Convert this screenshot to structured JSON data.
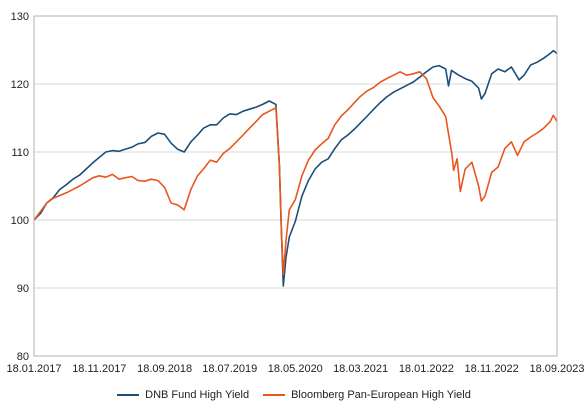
{
  "chart_data": {
    "type": "line",
    "title": "",
    "xlabel": "",
    "ylabel": "",
    "ylim": [
      80,
      130
    ],
    "yticks": [
      80,
      90,
      100,
      110,
      120,
      130
    ],
    "xlim": [
      "2017-01-18",
      "2023-09-18"
    ],
    "xtick_labels": [
      "18.01.2017",
      "18.11.2017",
      "18.09.2018",
      "18.07.2019",
      "18.05.2020",
      "18.03.2021",
      "18.01.2022",
      "18.11.2022",
      "18.09.2023"
    ],
    "xtick_dates": [
      "2017-01-18",
      "2017-11-18",
      "2018-09-18",
      "2019-07-18",
      "2020-05-18",
      "2021-03-18",
      "2022-01-18",
      "2022-11-18",
      "2023-09-18"
    ],
    "grid": true,
    "legend_position": "bottom",
    "series": [
      {
        "name": "DNB Fund High Yield",
        "color": "#1f4e79",
        "points": [
          [
            "2017-01-18",
            100.0
          ],
          [
            "2017-02-18",
            101.0
          ],
          [
            "2017-03-18",
            102.5
          ],
          [
            "2017-04-18",
            103.3
          ],
          [
            "2017-05-18",
            104.5
          ],
          [
            "2017-06-18",
            105.2
          ],
          [
            "2017-07-18",
            106.0
          ],
          [
            "2017-08-18",
            106.6
          ],
          [
            "2017-09-18",
            107.5
          ],
          [
            "2017-10-18",
            108.4
          ],
          [
            "2017-11-18",
            109.2
          ],
          [
            "2017-12-18",
            110.0
          ],
          [
            "2018-01-18",
            110.2
          ],
          [
            "2018-02-18",
            110.1
          ],
          [
            "2018-03-18",
            110.4
          ],
          [
            "2018-04-18",
            110.7
          ],
          [
            "2018-05-18",
            111.2
          ],
          [
            "2018-06-18",
            111.4
          ],
          [
            "2018-07-18",
            112.3
          ],
          [
            "2018-08-18",
            112.8
          ],
          [
            "2018-09-18",
            112.6
          ],
          [
            "2018-10-18",
            111.3
          ],
          [
            "2018-11-18",
            110.4
          ],
          [
            "2018-12-18",
            110.0
          ],
          [
            "2019-01-18",
            111.5
          ],
          [
            "2019-02-18",
            112.5
          ],
          [
            "2019-03-18",
            113.5
          ],
          [
            "2019-04-18",
            114.0
          ],
          [
            "2019-05-18",
            114.0
          ],
          [
            "2019-06-18",
            115.0
          ],
          [
            "2019-07-18",
            115.6
          ],
          [
            "2019-08-18",
            115.5
          ],
          [
            "2019-09-18",
            116.0
          ],
          [
            "2019-10-18",
            116.3
          ],
          [
            "2019-11-18",
            116.6
          ],
          [
            "2019-12-18",
            117.0
          ],
          [
            "2020-01-18",
            117.5
          ],
          [
            "2020-02-18",
            117.0
          ],
          [
            "2020-03-05",
            108.0
          ],
          [
            "2020-03-15",
            98.0
          ],
          [
            "2020-03-23",
            90.3
          ],
          [
            "2020-04-05",
            94.5
          ],
          [
            "2020-04-20",
            97.5
          ],
          [
            "2020-05-18",
            99.8
          ],
          [
            "2020-06-18",
            103.5
          ],
          [
            "2020-07-18",
            105.8
          ],
          [
            "2020-08-18",
            107.5
          ],
          [
            "2020-09-18",
            108.5
          ],
          [
            "2020-10-18",
            109.0
          ],
          [
            "2020-11-18",
            110.5
          ],
          [
            "2020-12-18",
            111.8
          ],
          [
            "2021-01-18",
            112.5
          ],
          [
            "2021-02-18",
            113.4
          ],
          [
            "2021-03-18",
            114.3
          ],
          [
            "2021-04-18",
            115.3
          ],
          [
            "2021-05-18",
            116.3
          ],
          [
            "2021-06-18",
            117.3
          ],
          [
            "2021-07-18",
            118.1
          ],
          [
            "2021-08-18",
            118.8
          ],
          [
            "2021-09-18",
            119.3
          ],
          [
            "2021-10-18",
            119.8
          ],
          [
            "2021-11-18",
            120.3
          ],
          [
            "2021-12-18",
            121.0
          ],
          [
            "2022-01-18",
            121.8
          ],
          [
            "2022-02-18",
            122.5
          ],
          [
            "2022-03-18",
            122.7
          ],
          [
            "2022-04-18",
            122.2
          ],
          [
            "2022-05-01",
            119.7
          ],
          [
            "2022-05-15",
            122.0
          ],
          [
            "2022-06-18",
            121.3
          ],
          [
            "2022-07-18",
            120.8
          ],
          [
            "2022-08-18",
            120.4
          ],
          [
            "2022-09-18",
            119.4
          ],
          [
            "2022-10-01",
            117.8
          ],
          [
            "2022-10-18",
            118.6
          ],
          [
            "2022-11-18",
            121.5
          ],
          [
            "2022-12-18",
            122.2
          ],
          [
            "2023-01-18",
            121.8
          ],
          [
            "2023-02-18",
            122.5
          ],
          [
            "2023-03-18",
            121.0
          ],
          [
            "2023-03-25",
            120.6
          ],
          [
            "2023-04-18",
            121.3
          ],
          [
            "2023-05-18",
            122.8
          ],
          [
            "2023-06-18",
            123.2
          ],
          [
            "2023-07-18",
            123.8
          ],
          [
            "2023-08-18",
            124.5
          ],
          [
            "2023-09-01",
            124.9
          ],
          [
            "2023-09-18",
            124.5
          ]
        ]
      },
      {
        "name": "Bloomberg Pan-European High Yield",
        "color": "#e8571f",
        "points": [
          [
            "2017-01-18",
            100.0
          ],
          [
            "2017-02-18",
            101.3
          ],
          [
            "2017-03-18",
            102.5
          ],
          [
            "2017-04-18",
            103.2
          ],
          [
            "2017-05-18",
            103.6
          ],
          [
            "2017-06-18",
            104.0
          ],
          [
            "2017-07-18",
            104.5
          ],
          [
            "2017-08-18",
            105.0
          ],
          [
            "2017-09-18",
            105.6
          ],
          [
            "2017-10-18",
            106.2
          ],
          [
            "2017-11-18",
            106.5
          ],
          [
            "2017-12-18",
            106.3
          ],
          [
            "2018-01-18",
            106.7
          ],
          [
            "2018-02-18",
            106.0
          ],
          [
            "2018-03-18",
            106.2
          ],
          [
            "2018-04-18",
            106.4
          ],
          [
            "2018-05-18",
            105.8
          ],
          [
            "2018-06-18",
            105.7
          ],
          [
            "2018-07-18",
            106.0
          ],
          [
            "2018-08-18",
            105.8
          ],
          [
            "2018-09-18",
            104.8
          ],
          [
            "2018-10-18",
            102.5
          ],
          [
            "2018-11-18",
            102.2
          ],
          [
            "2018-12-18",
            101.5
          ],
          [
            "2019-01-18",
            104.5
          ],
          [
            "2019-02-18",
            106.5
          ],
          [
            "2019-03-18",
            107.5
          ],
          [
            "2019-04-18",
            108.8
          ],
          [
            "2019-05-18",
            108.5
          ],
          [
            "2019-06-18",
            109.8
          ],
          [
            "2019-07-18",
            110.5
          ],
          [
            "2019-08-18",
            111.5
          ],
          [
            "2019-09-18",
            112.5
          ],
          [
            "2019-10-18",
            113.5
          ],
          [
            "2019-11-18",
            114.5
          ],
          [
            "2019-12-18",
            115.5
          ],
          [
            "2020-01-18",
            116.0
          ],
          [
            "2020-02-18",
            116.5
          ],
          [
            "2020-03-05",
            108.0
          ],
          [
            "2020-03-15",
            98.0
          ],
          [
            "2020-03-23",
            92.0
          ],
          [
            "2020-04-05",
            97.0
          ],
          [
            "2020-04-20",
            101.5
          ],
          [
            "2020-05-18",
            103.0
          ],
          [
            "2020-06-18",
            106.5
          ],
          [
            "2020-07-18",
            108.8
          ],
          [
            "2020-08-18",
            110.3
          ],
          [
            "2020-09-18",
            111.2
          ],
          [
            "2020-10-18",
            112.0
          ],
          [
            "2020-11-18",
            114.0
          ],
          [
            "2020-12-18",
            115.3
          ],
          [
            "2021-01-18",
            116.2
          ],
          [
            "2021-02-18",
            117.3
          ],
          [
            "2021-03-18",
            118.2
          ],
          [
            "2021-04-18",
            119.0
          ],
          [
            "2021-05-18",
            119.5
          ],
          [
            "2021-06-18",
            120.3
          ],
          [
            "2021-07-18",
            120.8
          ],
          [
            "2021-08-18",
            121.3
          ],
          [
            "2021-09-18",
            121.8
          ],
          [
            "2021-10-18",
            121.3
          ],
          [
            "2021-11-18",
            121.5
          ],
          [
            "2021-12-18",
            121.8
          ],
          [
            "2022-01-18",
            120.8
          ],
          [
            "2022-02-18",
            118.0
          ],
          [
            "2022-03-18",
            116.8
          ],
          [
            "2022-04-18",
            115.2
          ],
          [
            "2022-05-18",
            109.5
          ],
          [
            "2022-05-25",
            107.3
          ],
          [
            "2022-06-10",
            109.0
          ],
          [
            "2022-06-25",
            104.2
          ],
          [
            "2022-07-18",
            107.5
          ],
          [
            "2022-08-18",
            108.5
          ],
          [
            "2022-09-18",
            105.0
          ],
          [
            "2022-10-01",
            102.8
          ],
          [
            "2022-10-18",
            103.5
          ],
          [
            "2022-11-18",
            107.0
          ],
          [
            "2022-12-18",
            107.8
          ],
          [
            "2023-01-18",
            110.5
          ],
          [
            "2023-02-18",
            111.5
          ],
          [
            "2023-03-18",
            109.5
          ],
          [
            "2023-04-18",
            111.5
          ],
          [
            "2023-05-18",
            112.2
          ],
          [
            "2023-06-18",
            112.8
          ],
          [
            "2023-07-18",
            113.5
          ],
          [
            "2023-08-18",
            114.5
          ],
          [
            "2023-09-01",
            115.4
          ],
          [
            "2023-09-18",
            114.5
          ]
        ]
      }
    ]
  }
}
